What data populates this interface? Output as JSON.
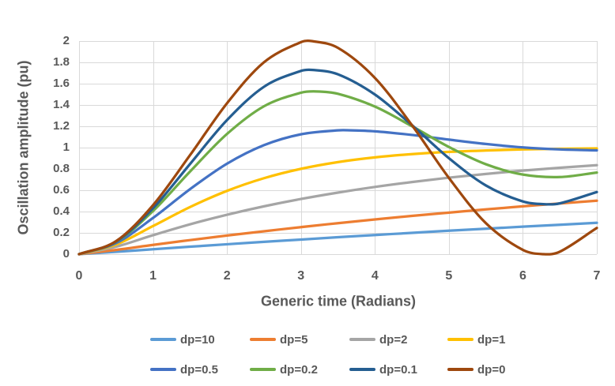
{
  "chart_data": {
    "type": "line",
    "title": "",
    "xlabel": "Generic time (Radians)",
    "ylabel": "Oscillation amplitude (pu)",
    "xlim": [
      0,
      7
    ],
    "ylim": [
      0,
      2
    ],
    "xticks": [
      "0",
      "1",
      "2",
      "3",
      "4",
      "5",
      "6",
      "7"
    ],
    "yticks": [
      "2",
      "1.8",
      "1.6",
      "1.4",
      "1.2",
      "1",
      "0.8",
      "0.6",
      "0.4",
      "0.2",
      "0"
    ],
    "grid": true,
    "legend_position": "bottom",
    "series": [
      {
        "name": "dp=10",
        "color": "#5B9BD5",
        "x": [
          0,
          0.5,
          1,
          1.5,
          2,
          2.5,
          3,
          3.5,
          4,
          4.5,
          5,
          5.5,
          6,
          6.5,
          7
        ],
        "y": [
          0,
          0.022,
          0.046,
          0.07,
          0.093,
          0.116,
          0.137,
          0.159,
          0.18,
          0.2,
          0.22,
          0.239,
          0.258,
          0.276,
          0.294
        ]
      },
      {
        "name": "dp=5",
        "color": "#ED7D31",
        "x": [
          0,
          0.5,
          1,
          1.5,
          2,
          2.5,
          3,
          3.5,
          4,
          4.5,
          5,
          5.5,
          6,
          6.5,
          7
        ],
        "y": [
          0,
          0.04,
          0.087,
          0.132,
          0.175,
          0.215,
          0.254,
          0.291,
          0.326,
          0.359,
          0.39,
          0.42,
          0.449,
          0.476,
          0.502
        ]
      },
      {
        "name": "dp=2",
        "color": "#A5A5A5",
        "x": [
          0,
          0.5,
          1,
          1.5,
          2,
          2.5,
          3,
          3.5,
          4,
          4.5,
          5,
          5.5,
          6,
          6.5,
          7
        ],
        "y": [
          0,
          0.07,
          0.178,
          0.28,
          0.37,
          0.449,
          0.518,
          0.578,
          0.631,
          0.677,
          0.718,
          0.753,
          0.784,
          0.811,
          0.835
        ]
      },
      {
        "name": "dp=1",
        "color": "#FFC000",
        "x": [
          0,
          0.5,
          1,
          1.5,
          2,
          2.5,
          3,
          3.5,
          4,
          4.5,
          5,
          5.5,
          6,
          6.5,
          7
        ],
        "y": [
          0,
          0.09,
          0.264,
          0.442,
          0.594,
          0.713,
          0.801,
          0.864,
          0.908,
          0.939,
          0.96,
          0.973,
          0.983,
          0.989,
          0.993
        ]
      },
      {
        "name": "dp=0.5",
        "color": "#4472C4",
        "x": [
          0,
          0.5,
          1,
          1.5,
          2,
          2.5,
          3,
          3.5,
          3.63,
          4,
          4.5,
          5,
          5.5,
          6,
          6.5,
          7
        ],
        "y": [
          0,
          0.104,
          0.34,
          0.61,
          0.849,
          1.023,
          1.125,
          1.162,
          1.163,
          1.153,
          1.119,
          1.075,
          1.034,
          1.002,
          0.983,
          0.974
        ]
      },
      {
        "name": "dp=0.2",
        "color": "#70AD47",
        "x": [
          0,
          0.5,
          1,
          1.5,
          2,
          2.5,
          3,
          3.21,
          3.5,
          4,
          4.5,
          5,
          5.5,
          6,
          6.5,
          7
        ],
        "y": [
          0,
          0.115,
          0.405,
          0.775,
          1.128,
          1.388,
          1.515,
          1.527,
          1.505,
          1.385,
          1.201,
          1.006,
          0.844,
          0.747,
          0.724,
          0.766
        ]
      },
      {
        "name": "dp=0.1",
        "color": "#255E91",
        "x": [
          0,
          0.5,
          1,
          1.5,
          2,
          2.5,
          3,
          3.16,
          3.5,
          4,
          4.5,
          5,
          5.5,
          6,
          6.32,
          6.5,
          7
        ],
        "y": [
          0,
          0.118,
          0.431,
          0.846,
          1.258,
          1.571,
          1.72,
          1.729,
          1.688,
          1.498,
          1.211,
          0.901,
          0.645,
          0.495,
          0.468,
          0.477,
          0.583
        ]
      },
      {
        "name": "dp=0",
        "color": "#9E480E",
        "x": [
          0,
          0.5,
          1,
          1.5,
          2,
          2.5,
          3,
          3.142,
          3.5,
          4,
          4.5,
          5,
          5.5,
          6,
          6.283,
          6.5,
          7
        ],
        "y": [
          0,
          0.122,
          0.46,
          0.929,
          1.416,
          1.801,
          1.99,
          2,
          1.936,
          1.654,
          1.211,
          0.716,
          0.291,
          0.04,
          0,
          0.023,
          0.246
        ]
      }
    ]
  },
  "styles": {
    "text_color": "#595959",
    "grid_color": "#D9D9D9",
    "background": "#FFFFFF"
  }
}
